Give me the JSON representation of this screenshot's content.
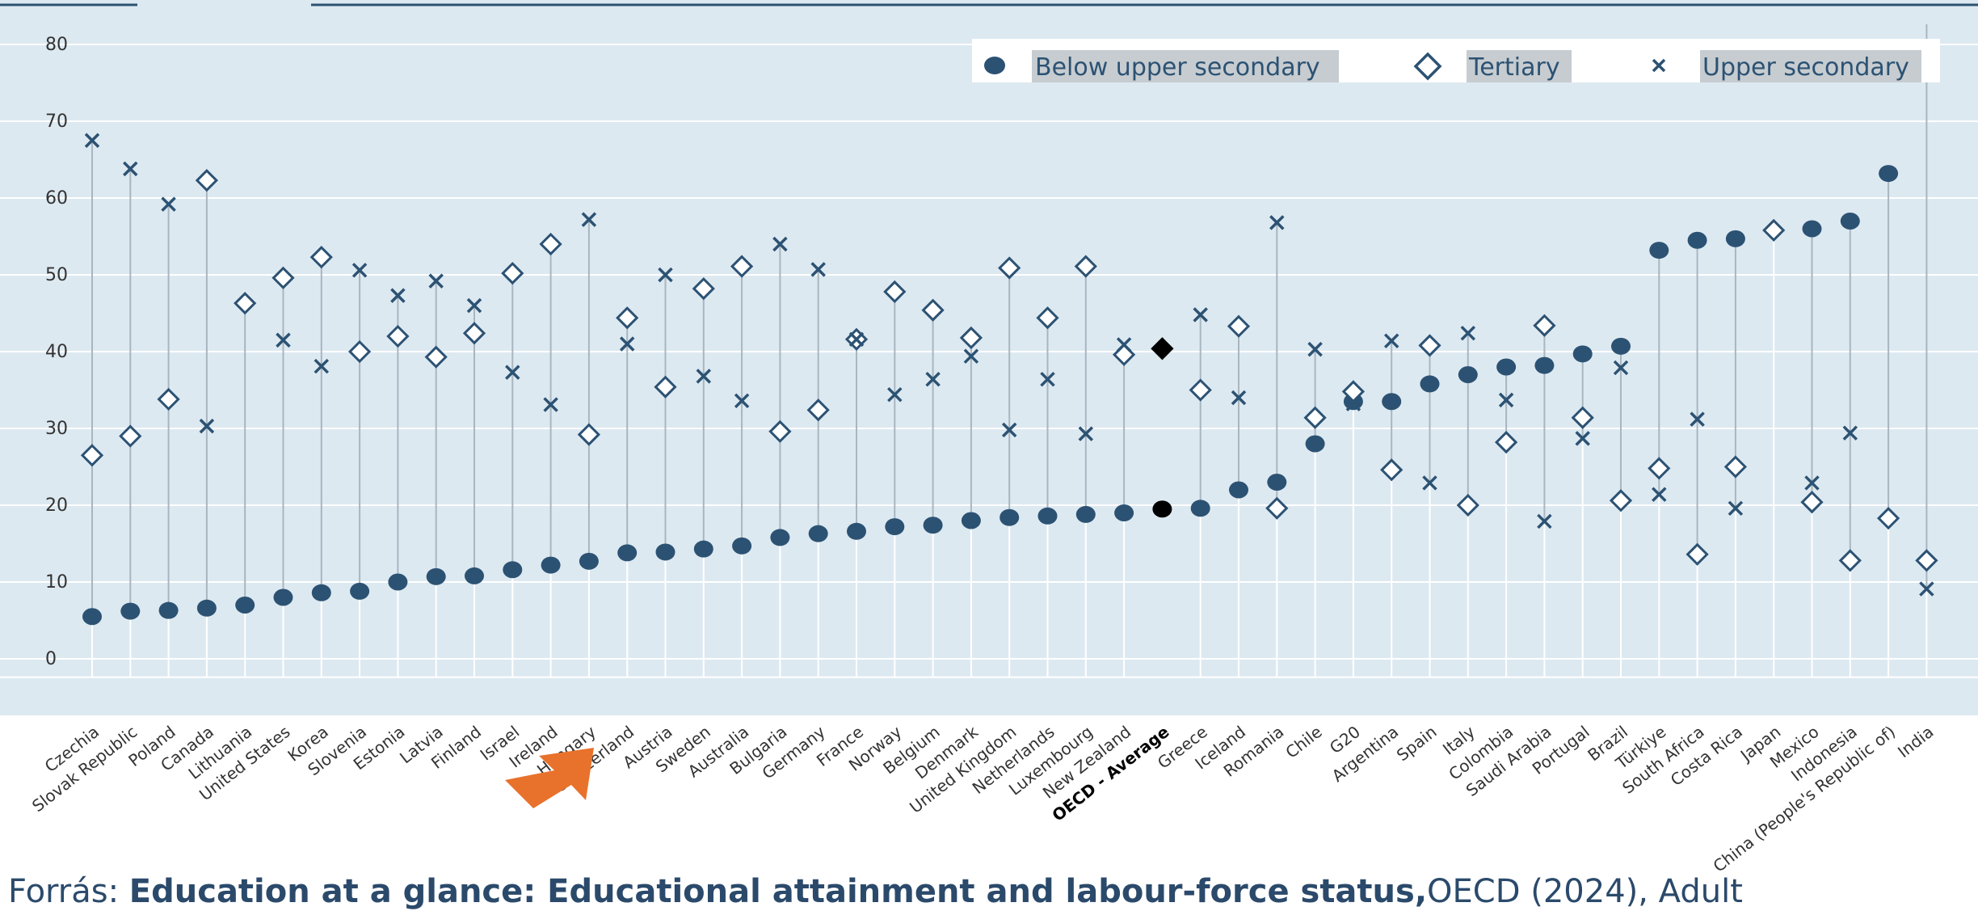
{
  "chart_data": {
    "type": "scatter",
    "ylim": [
      0,
      80
    ],
    "yticks": [
      0,
      10,
      20,
      30,
      40,
      50,
      60,
      70,
      80
    ],
    "grid": true,
    "legend_position": "top-right",
    "categories": [
      "Czechia",
      "Slovak Republic",
      "Poland",
      "Canada",
      "Lithuania",
      "United States",
      "Korea",
      "Slovenia",
      "Estonia",
      "Latvia",
      "Finland",
      "Israel",
      "Ireland",
      "Hungary",
      "Switzerland",
      "Austria",
      "Sweden",
      "Australia",
      "Bulgaria",
      "Germany",
      "France",
      "Norway",
      "Belgium",
      "Denmark",
      "United Kingdom",
      "Netherlands",
      "Luxembourg",
      "New Zealand",
      "OECD - Average",
      "Greece",
      "Iceland",
      "Romania",
      "Chile",
      "G20",
      "Argentina",
      "Spain",
      "Italy",
      "Colombia",
      "Saudi Arabia",
      "Portugal",
      "Brazil",
      "Türkiye",
      "South Africa",
      "Costa Rica",
      "Japan",
      "Mexico",
      "Indonesia",
      "China (People's Republic of)",
      "India"
    ],
    "highlight": "OECD - Average",
    "arrow_target": "Ireland",
    "series": [
      {
        "name": "Below upper secondary",
        "marker": "circle",
        "values": [
          5.5,
          6.2,
          6.3,
          6.6,
          7,
          8,
          8.6,
          8.8,
          10,
          10.7,
          10.8,
          11.6,
          12.2,
          12.7,
          13.8,
          13.9,
          14.3,
          14.7,
          15.8,
          16.3,
          16.6,
          17.2,
          17.4,
          18,
          18.4,
          18.6,
          18.8,
          19,
          19.5,
          19.6,
          22,
          23,
          28,
          33.5,
          33.5,
          35.8,
          37,
          38,
          38.2,
          39.7,
          40.7,
          53.2,
          54.5,
          54.7,
          null,
          56,
          57,
          63.2,
          null
        ]
      },
      {
        "name": "Tertiary",
        "marker": "diamond",
        "values": [
          26.5,
          29,
          33.8,
          62.3,
          46.3,
          49.6,
          52.3,
          40,
          42,
          39.3,
          42.4,
          50.2,
          54,
          29.2,
          44.4,
          35.4,
          48.2,
          51.1,
          29.6,
          32.4,
          41.6,
          47.8,
          45.4,
          41.8,
          50.9,
          44.4,
          51.1,
          39.6,
          40.4,
          35,
          43.3,
          19.6,
          31.4,
          34.8,
          24.6,
          40.8,
          20,
          28.2,
          43.4,
          31.4,
          20.6,
          24.8,
          13.6,
          25,
          55.8,
          20.4,
          12.8,
          18.3,
          12.8
        ]
      },
      {
        "name": "Upper secondary",
        "marker": "cross",
        "values": [
          67.5,
          63.8,
          59.2,
          30.3,
          null,
          41.5,
          38.1,
          50.6,
          47.3,
          49.2,
          46,
          37.3,
          33.1,
          57.2,
          41,
          50,
          36.8,
          33.6,
          54,
          50.7,
          41.6,
          34.4,
          36.4,
          39.4,
          29.8,
          36.4,
          29.3,
          40.9,
          null,
          44.8,
          34,
          56.8,
          40.3,
          33.2,
          41.4,
          22.9,
          42.4,
          33.7,
          17.9,
          28.7,
          37.9,
          21.4,
          31.2,
          19.6,
          null,
          22.9,
          29.4,
          null,
          9.1
        ]
      }
    ]
  },
  "legend": {
    "items": [
      "Below upper secondary",
      "Tertiary",
      "Upper secondary"
    ]
  },
  "footer": {
    "prefix": "Forrás: ",
    "bold_text": "Education at a glance: Educational attainment and labour-force status,",
    "suffix": "OECD (2024), Adult"
  },
  "colors": {
    "plot_bg": "#dde9f1",
    "navy": "#2c5273",
    "grid": "#ffffff",
    "whisker": "#a9b6c0",
    "highlight": "#000000",
    "arrow": "#e8722c",
    "legend_label_bg": "#c6ccd0"
  }
}
